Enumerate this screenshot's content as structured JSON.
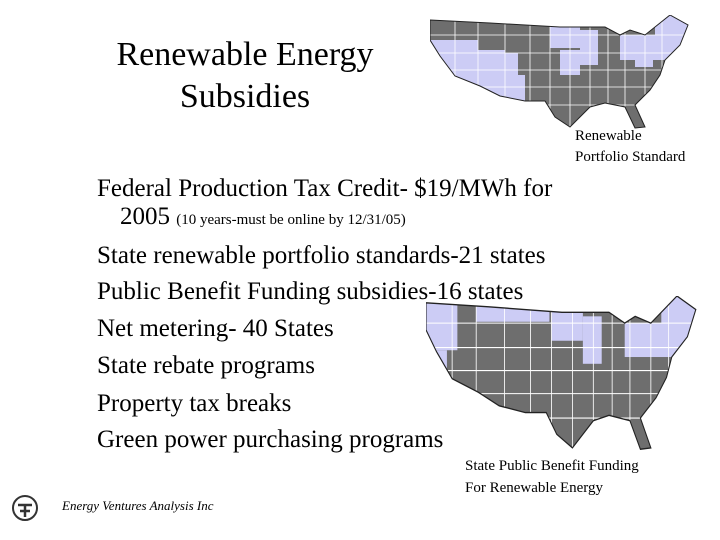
{
  "header": {
    "title_lines": [
      "Renewable Energy",
      "Subsidies"
    ]
  },
  "maps": [
    {
      "caption_lines": [
        "Renewable",
        "Portfolio Standard"
      ]
    },
    {
      "caption_lines": [
        "State Public Benefit Funding",
        "For Renewable Energy"
      ]
    }
  ],
  "bullets": [
    {
      "text": "Federal Production Tax Credit- $19/MWh for",
      "continuation": "2005",
      "note": "(10 years-must be online by 12/31/05)"
    },
    {
      "text": "State renewable portfolio standards-21 states"
    },
    {
      "text": "Public Benefit Funding subsidies-16 states"
    },
    {
      "text": "Net metering- 40 States"
    },
    {
      "text": "State rebate programs"
    },
    {
      "text": "Property tax breaks"
    },
    {
      "text": "Green power purchasing programs"
    }
  ],
  "footer": {
    "company": "Energy Ventures Analysis Inc"
  }
}
